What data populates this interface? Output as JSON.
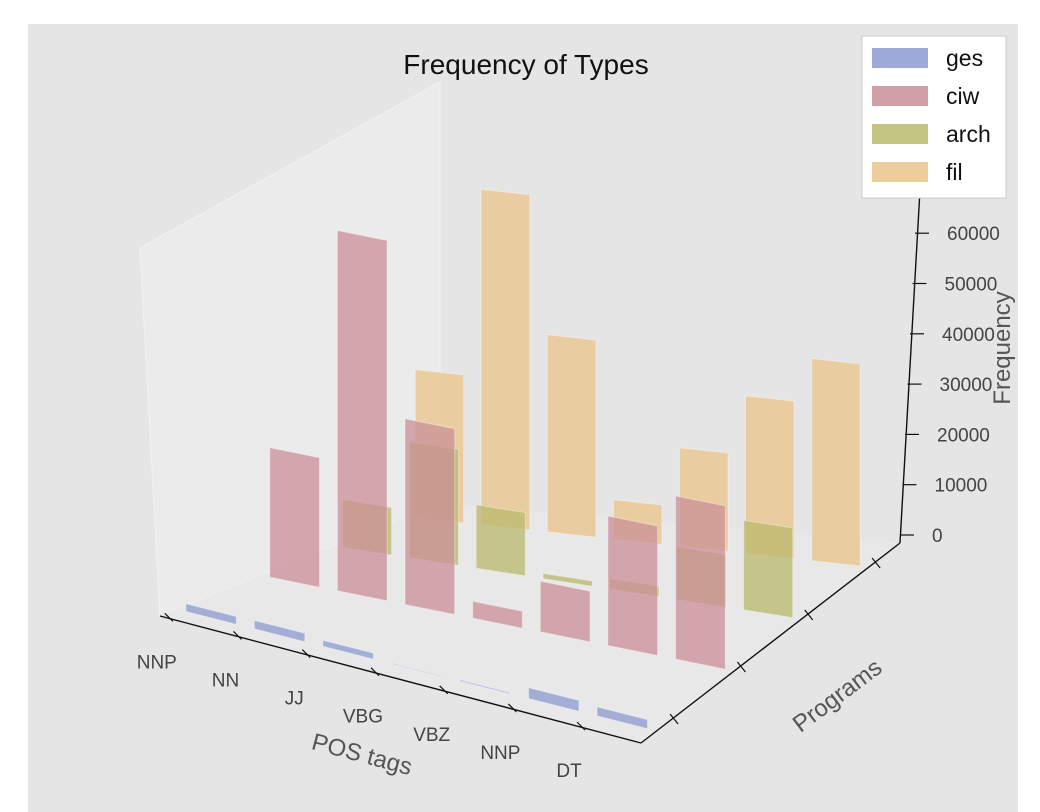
{
  "chart_data": {
    "type": "bar3d",
    "title": "Frequency of Types",
    "xlabel": "POS tags",
    "ylabel": "Programs",
    "zlabel": "Frequency",
    "categories": [
      "NNP",
      "NN",
      "JJ",
      "VBG",
      "VBZ",
      "NNP",
      "DT"
    ],
    "z_ticks": [
      0,
      10000,
      20000,
      30000,
      40000,
      50000,
      60000
    ],
    "zlim": [
      0,
      70000
    ],
    "series": [
      {
        "name": "ges",
        "color": "#8c9bd2",
        "values": [
          1300,
          1400,
          1000,
          100,
          200,
          1800,
          1500
        ]
      },
      {
        "name": "ciw",
        "color": "#c98f97",
        "values": [
          23000,
          64000,
          33000,
          3000,
          9000,
          23000,
          29000
        ]
      },
      {
        "name": "arch",
        "color": "#b9b86c",
        "values": [
          9000,
          22000,
          12000,
          1000,
          2000,
          10000,
          17000
        ]
      },
      {
        "name": "fil",
        "color": "#eac48a",
        "values": [
          30000,
          68000,
          40000,
          8000,
          20000,
          32000,
          41000
        ]
      }
    ],
    "legend": "top-right",
    "grid": false
  }
}
